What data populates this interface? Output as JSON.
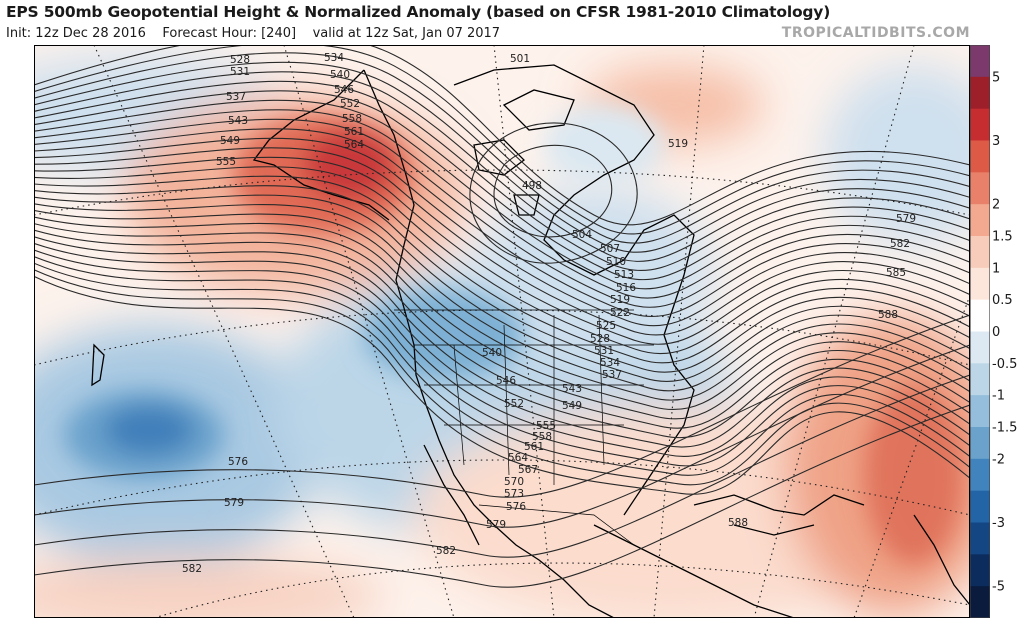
{
  "header": {
    "title": "EPS 500mb Geopotential Height & Normalized Anomaly (based on CFSR 1981-2010 Climatology)",
    "init": "Init: 12z Dec 28 2016",
    "forecast_hour": "Forecast Hour: [240]",
    "valid": "valid at 12z Sat, Jan 07 2017",
    "brand": "TROPICALTIDBITS.COM"
  },
  "legend": {
    "bins": [
      {
        "color": "#7b3a6b"
      },
      {
        "color": "#9c1f2a"
      },
      {
        "color": "#c62d30"
      },
      {
        "color": "#dd5a47"
      },
      {
        "color": "#e9806a"
      },
      {
        "color": "#f2a98f"
      },
      {
        "color": "#f8ccba"
      },
      {
        "color": "#fce6dc"
      },
      {
        "color": "#ffffff"
      },
      {
        "color": "#dce9f2"
      },
      {
        "color": "#bcd6e8"
      },
      {
        "color": "#94bedb"
      },
      {
        "color": "#6aa2cc"
      },
      {
        "color": "#4184bd"
      },
      {
        "color": "#2364a6"
      },
      {
        "color": "#144684"
      },
      {
        "color": "#0c2c5e"
      },
      {
        "color": "#0a1b3d"
      }
    ],
    "ticks": [
      "5",
      "3",
      "2",
      "1.5",
      "1",
      "0.5",
      "0",
      "-0.5",
      "-1",
      "-1.5",
      "-2",
      "-3",
      "-5"
    ]
  },
  "contour_labels": [
    {
      "text": "528"
    },
    {
      "text": "531"
    },
    {
      "text": "534"
    },
    {
      "text": "537"
    },
    {
      "text": "540"
    },
    {
      "text": "543"
    },
    {
      "text": "546"
    },
    {
      "text": "549"
    },
    {
      "text": "552"
    },
    {
      "text": "555"
    },
    {
      "text": "558"
    },
    {
      "text": "561"
    },
    {
      "text": "564"
    },
    {
      "text": "501"
    },
    {
      "text": "519"
    },
    {
      "text": "498"
    },
    {
      "text": "504"
    },
    {
      "text": "507"
    },
    {
      "text": "510"
    },
    {
      "text": "513"
    },
    {
      "text": "516"
    },
    {
      "text": "519"
    },
    {
      "text": "522"
    },
    {
      "text": "525"
    },
    {
      "text": "528"
    },
    {
      "text": "531"
    },
    {
      "text": "534"
    },
    {
      "text": "537"
    },
    {
      "text": "540"
    },
    {
      "text": "543"
    },
    {
      "text": "546"
    },
    {
      "text": "549"
    },
    {
      "text": "552"
    },
    {
      "text": "555"
    },
    {
      "text": "558"
    },
    {
      "text": "561"
    },
    {
      "text": "564"
    },
    {
      "text": "567"
    },
    {
      "text": "570"
    },
    {
      "text": "573"
    },
    {
      "text": "576"
    },
    {
      "text": "579"
    },
    {
      "text": "576"
    },
    {
      "text": "579"
    },
    {
      "text": "582"
    },
    {
      "text": "582"
    },
    {
      "text": "579"
    },
    {
      "text": "582"
    },
    {
      "text": "585"
    },
    {
      "text": "588"
    },
    {
      "text": "588"
    }
  ],
  "colors": {
    "anomaly_pos_strong": "#c62d30",
    "anomaly_pos_weak": "#f8ccba",
    "anomaly_neg_strong": "#2364a6",
    "anomaly_neg_weak": "#bcd6e8",
    "contour": "#2a2a2a",
    "coastline": "#000000"
  }
}
